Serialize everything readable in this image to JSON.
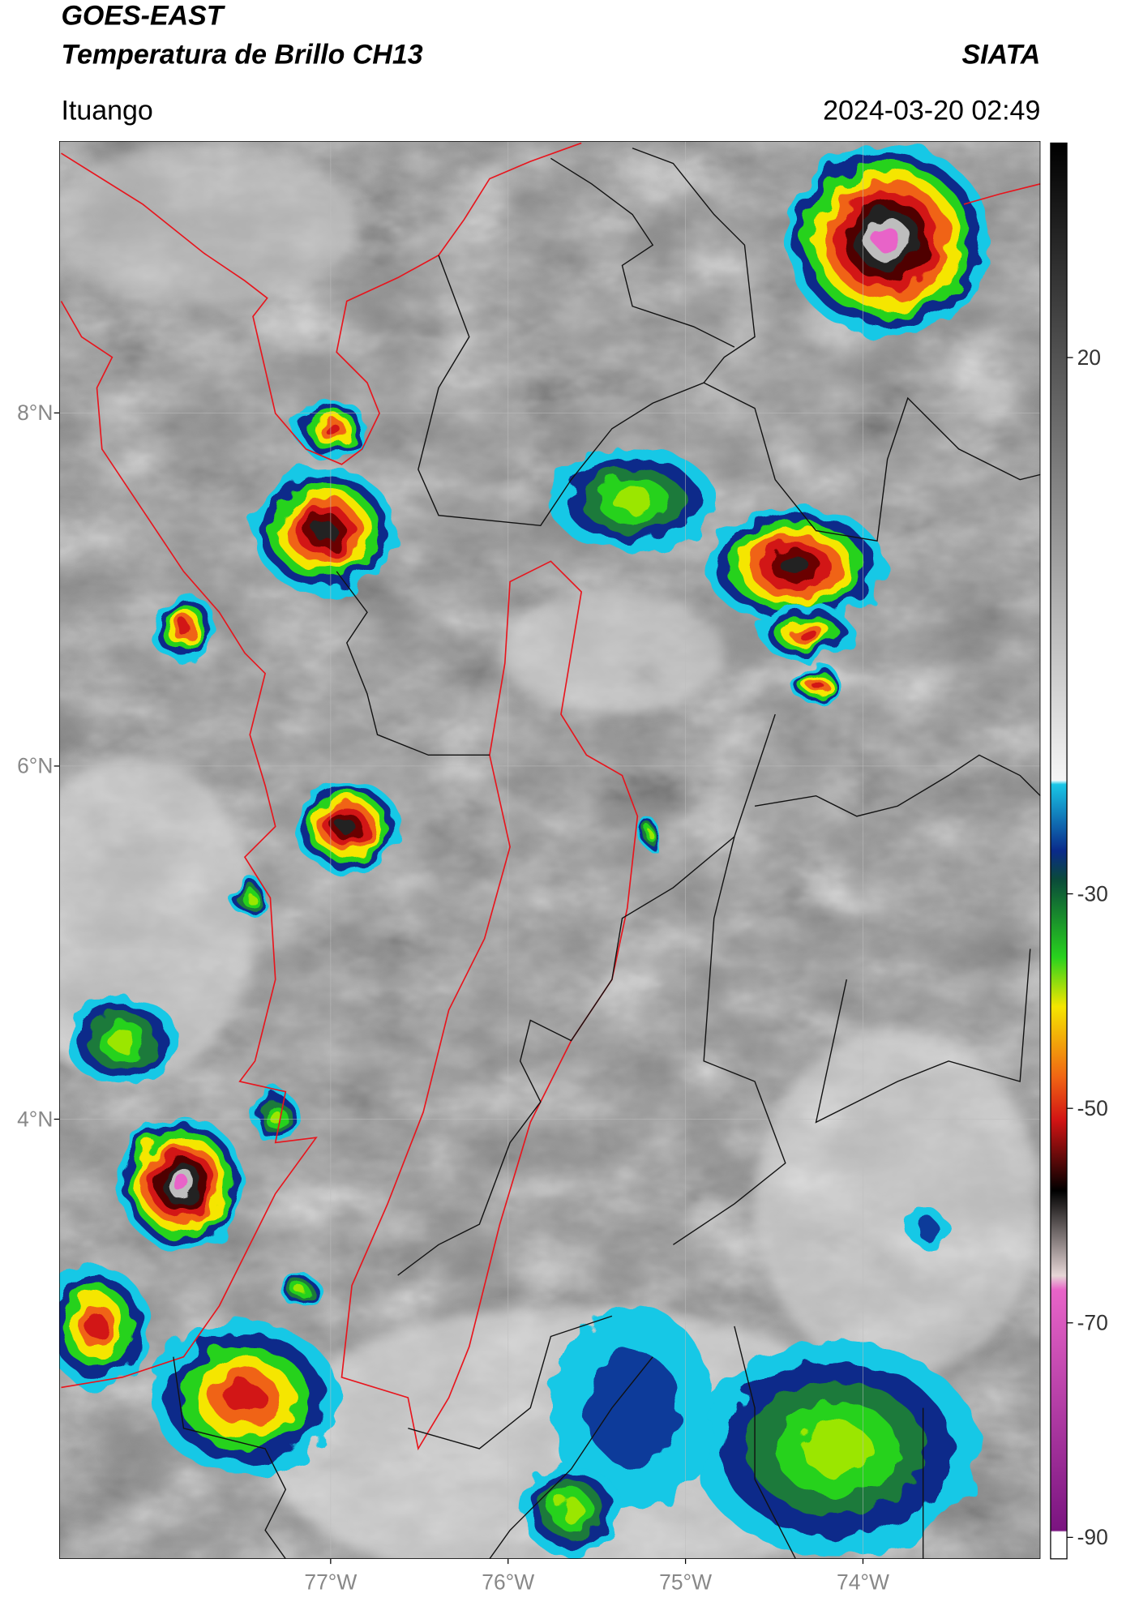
{
  "header": {
    "title": "GOES-EAST",
    "subtitle": "Temperatura de Brillo CH13",
    "source": "SIATA",
    "location": "Ituango",
    "datetime": "2024-03-20 02:49"
  },
  "map": {
    "xlim": [
      -78.53,
      -73.0
    ],
    "ylim": [
      1.51,
      9.54
    ],
    "xticks": [
      {
        "value": -77,
        "label": "77°W"
      },
      {
        "value": -76,
        "label": "76°W"
      },
      {
        "value": -75,
        "label": "75°W"
      },
      {
        "value": -74,
        "label": "74°W"
      }
    ],
    "yticks": [
      {
        "value": 8,
        "label": "8°N"
      },
      {
        "value": 6,
        "label": "6°N"
      },
      {
        "value": 4,
        "label": "4°N"
      }
    ],
    "grid": true
  },
  "colorbar": {
    "ylim": [
      40,
      -92
    ],
    "ticks": [
      20,
      -30,
      -50,
      -70,
      -90
    ]
  }
}
